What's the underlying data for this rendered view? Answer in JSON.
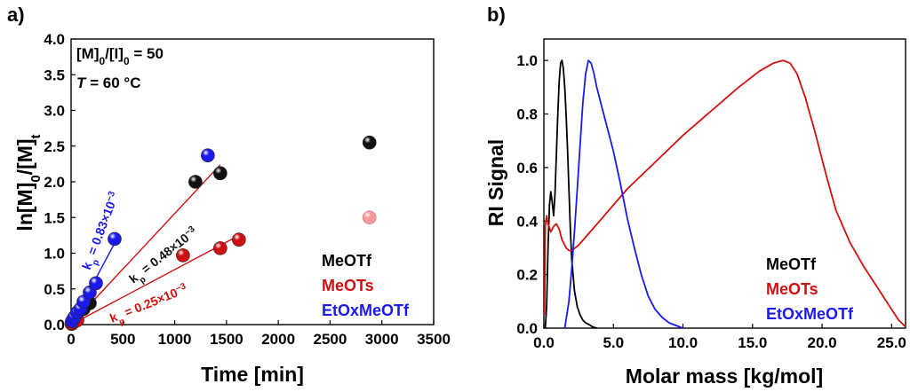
{
  "colors": {
    "MeOTf": "#000000",
    "MeOTs": "#d01010",
    "EtOxMeOTf": "#1a1aee",
    "MeOTs_light": "#f29a9a"
  },
  "chart_data": [
    {
      "panel": "a)",
      "type": "scatter",
      "xlabel": "Time [min]",
      "ylabel": "ln[M]0/[M]t",
      "xlim": [
        0,
        3500
      ],
      "ylim": [
        0,
        4.0
      ],
      "xticks": [
        "0",
        "500",
        "1000",
        "1500",
        "2000",
        "2500",
        "3000",
        "3500"
      ],
      "yticks": [
        "0.0",
        "0.5",
        "1.0",
        "1.5",
        "2.0",
        "2.5",
        "3.0",
        "3.5",
        "4.0"
      ],
      "annotations": [
        "[M]0/[I]0 = 50",
        "T = 60 °C"
      ],
      "series": [
        {
          "name": "MeOTf",
          "points": [
            [
              5,
              0.02
            ],
            [
              15,
              0.05
            ],
            [
              30,
              0.09
            ],
            [
              60,
              0.15
            ],
            [
              120,
              0.22
            ],
            [
              180,
              0.3
            ],
            [
              1200,
              2.0
            ],
            [
              1440,
              2.12
            ],
            [
              2880,
              2.55
            ]
          ],
          "fit": {
            "x": [
              0,
              1440
            ],
            "label_k": "kp = 0.48×10−3"
          }
        },
        {
          "name": "MeOTs",
          "points": [
            [
              5,
              0.01
            ],
            [
              15,
              0.02
            ],
            [
              30,
              0.04
            ],
            [
              60,
              0.06
            ],
            [
              1080,
              0.97
            ],
            [
              1440,
              1.07
            ],
            [
              1620,
              1.19
            ],
            [
              2880,
              1.5
            ]
          ],
          "open_last": true,
          "fit": {
            "x": [
              0,
              1620
            ],
            "label_k": "kp = 0.25×10−3"
          }
        },
        {
          "name": "EtOxMeOTf",
          "points": [
            [
              10,
              0.05
            ],
            [
              30,
              0.1
            ],
            [
              60,
              0.17
            ],
            [
              90,
              0.22
            ],
            [
              120,
              0.32
            ],
            [
              180,
              0.45
            ],
            [
              240,
              0.58
            ],
            [
              420,
              1.2
            ],
            [
              1320,
              2.37
            ]
          ],
          "fit": {
            "x": [
              0,
              420
            ],
            "label_k": "kp = 0.83×10−3"
          }
        }
      ],
      "legend": [
        "MeOTf",
        "MeOTs",
        "EtOxMeOTf"
      ]
    },
    {
      "panel": "b)",
      "type": "line",
      "xlabel": "Molar mass [kg/mol]",
      "ylabel": "RI Signal",
      "xlim": [
        0,
        26
      ],
      "ylim": [
        0,
        1.08
      ],
      "xticks": [
        "0.0",
        "5.0",
        "10.0",
        "15.0",
        "20.0",
        "25.0"
      ],
      "yticks": [
        "0.0",
        "0.2",
        "0.4",
        "0.6",
        "0.8",
        "1.0"
      ],
      "series": [
        {
          "name": "MeOTf",
          "x": [
            0.1,
            0.2,
            0.3,
            0.4,
            0.5,
            0.6,
            0.7,
            0.8,
            0.9,
            1.0,
            1.1,
            1.2,
            1.3,
            1.4,
            1.5,
            1.6,
            1.7,
            1.8,
            1.9,
            2.0,
            2.2,
            2.4,
            2.6,
            2.8,
            3.0,
            3.2,
            3.5,
            3.8
          ],
          "y": [
            0.0,
            0.08,
            0.3,
            0.46,
            0.51,
            0.47,
            0.42,
            0.5,
            0.65,
            0.8,
            0.92,
            0.99,
            1.0,
            0.97,
            0.9,
            0.8,
            0.67,
            0.52,
            0.38,
            0.26,
            0.14,
            0.08,
            0.05,
            0.03,
            0.02,
            0.015,
            0.005,
            0.0
          ]
        },
        {
          "name": "MeOTs",
          "x": [
            0.05,
            0.1,
            0.2,
            0.3,
            0.5,
            0.7,
            0.9,
            1.1,
            1.3,
            1.6,
            1.8,
            2.0,
            2.5,
            3.0,
            4.0,
            5.0,
            6.0,
            8.0,
            10.0,
            12.0,
            14.0,
            15.5,
            16.5,
            17.2,
            17.7,
            18.2,
            18.8,
            19.5,
            20.3,
            21.0,
            22.0,
            23.0,
            24.0,
            25.0,
            25.5,
            26.0
          ],
          "y": [
            0.05,
            0.38,
            0.42,
            0.39,
            0.36,
            0.38,
            0.39,
            0.37,
            0.33,
            0.3,
            0.29,
            0.29,
            0.31,
            0.34,
            0.4,
            0.46,
            0.52,
            0.62,
            0.72,
            0.81,
            0.9,
            0.96,
            0.99,
            1.0,
            0.99,
            0.95,
            0.86,
            0.73,
            0.57,
            0.44,
            0.32,
            0.23,
            0.15,
            0.07,
            0.03,
            0.005
          ]
        },
        {
          "name": "EtOxMeOTf",
          "x": [
            1.5,
            1.8,
            2.0,
            2.2,
            2.4,
            2.6,
            2.8,
            3.0,
            3.2,
            3.4,
            3.6,
            3.8,
            4.0,
            4.3,
            4.6,
            5.0,
            5.5,
            6.0,
            6.5,
            7.0,
            7.5,
            8.0,
            8.5,
            9.0,
            9.5,
            10.0
          ],
          "y": [
            0.0,
            0.1,
            0.22,
            0.36,
            0.52,
            0.68,
            0.84,
            0.95,
            1.0,
            0.99,
            0.95,
            0.9,
            0.86,
            0.8,
            0.74,
            0.66,
            0.54,
            0.41,
            0.3,
            0.2,
            0.12,
            0.07,
            0.04,
            0.02,
            0.01,
            0.0
          ]
        }
      ],
      "legend": [
        "MeOTf",
        "MeOTs",
        "EtOxMeOTf"
      ]
    }
  ]
}
